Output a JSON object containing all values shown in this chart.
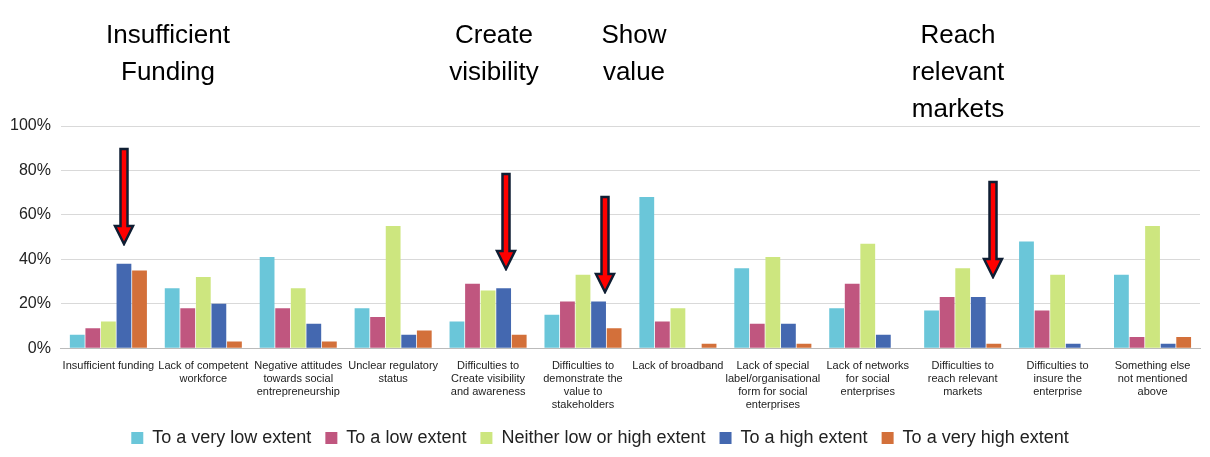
{
  "chart_data": {
    "type": "bar",
    "categories": [
      "Insufficient funding",
      "Lack of competent workforce",
      "Negative attitudes towards social entrepreneurship",
      "Unclear regulatory status",
      "Difficulties to Create visibility and awareness",
      "Difficulties to demonstrate the value to stakeholders",
      "Lack of broadband",
      "Lack of special label/organisational form for social enterprises",
      "Lack of networks for social enterprises",
      "Difficulties to reach relevant markets",
      "Difficulties to insure the enterprise",
      "Something else not mentioned above"
    ],
    "series": [
      {
        "name": "To a very low extent",
        "color": "#6ac6d9",
        "values": [
          6,
          27,
          41,
          18,
          12,
          15,
          68,
          36,
          18,
          17,
          48,
          33
        ]
      },
      {
        "name": "To a low extent",
        "color": "#c0567f",
        "values": [
          9,
          18,
          18,
          14,
          29,
          21,
          12,
          11,
          29,
          23,
          17,
          5
        ]
      },
      {
        "name": "Neither low or high extent",
        "color": "#cde67f",
        "values": [
          12,
          32,
          27,
          55,
          26,
          33,
          18,
          41,
          47,
          36,
          33,
          55
        ]
      },
      {
        "name": "To a high extent",
        "color": "#4468b0",
        "values": [
          38,
          20,
          11,
          6,
          27,
          21,
          0,
          11,
          6,
          23,
          2,
          2
        ]
      },
      {
        "name": "To a very high extent",
        "color": "#d3703a",
        "values": [
          35,
          3,
          3,
          8,
          6,
          9,
          2,
          2,
          0,
          2,
          0,
          5
        ]
      }
    ],
    "ylim": [
      0,
      100
    ],
    "yticks": [
      {
        "value": 0,
        "label": "0%"
      },
      {
        "value": 20,
        "label": "20%"
      },
      {
        "value": 40,
        "label": "40%"
      },
      {
        "value": 60,
        "label": "60%"
      },
      {
        "value": 80,
        "label": "80%"
      },
      {
        "value": 100,
        "label": "100%"
      }
    ],
    "grid": "y",
    "legend": "bottom",
    "annotations": [
      "Insufficient Funding",
      "Create visibility",
      "Show value",
      "Reach relevant markets"
    ]
  }
}
